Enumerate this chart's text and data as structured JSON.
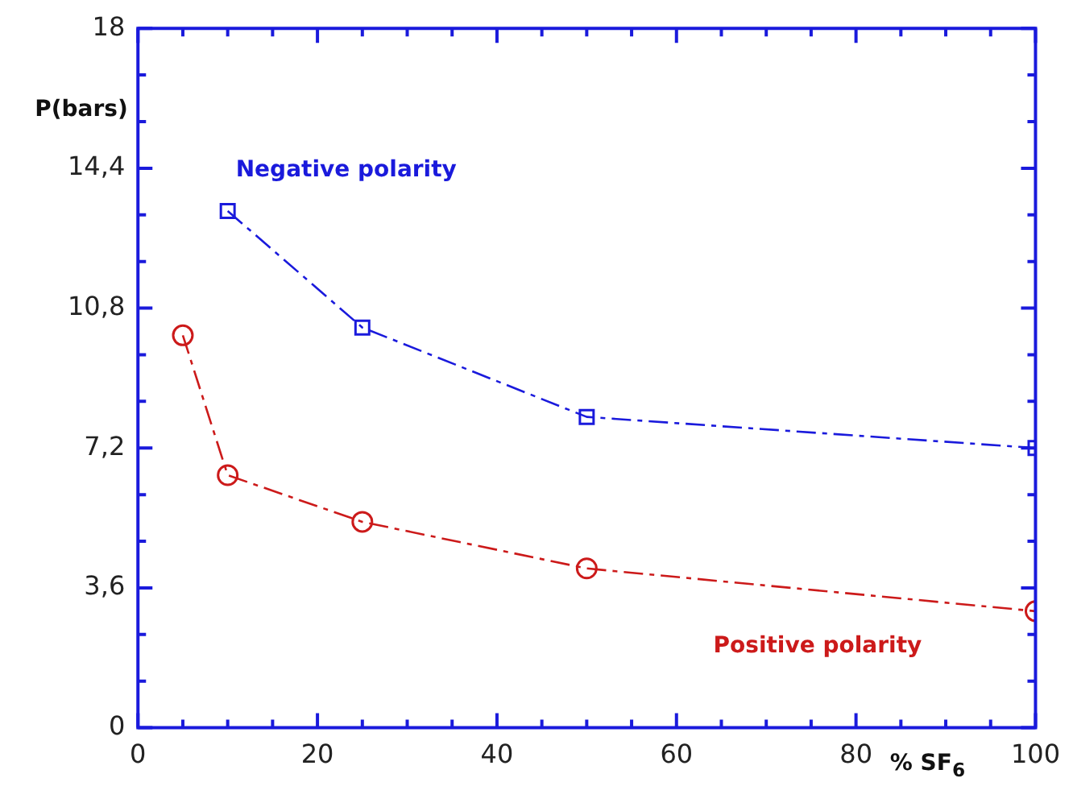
{
  "chart_data": {
    "type": "line",
    "xlabel": "% SF$_{6}$",
    "ylabel": "P(bars)",
    "xlim": [
      0,
      100
    ],
    "ylim": [
      0,
      18
    ],
    "xticks": [
      0,
      {
        "value": 5,
        "label": null
      },
      {
        "value": 10,
        "label": null
      },
      {
        "value": 15,
        "label": null
      },
      20,
      {
        "value": 25,
        "label": null
      },
      {
        "value": 30,
        "label": null
      },
      {
        "value": 35,
        "label": null
      },
      40,
      {
        "value": 45,
        "label": null
      },
      {
        "value": 50,
        "label": null
      },
      {
        "value": 55,
        "label": null
      },
      60,
      {
        "value": 65,
        "label": null
      },
      {
        "value": 70,
        "label": null
      },
      {
        "value": 75,
        "label": null
      },
      80,
      {
        "value": 85,
        "label": null
      },
      {
        "value": 90,
        "label": null
      },
      {
        "value": 95,
        "label": null
      },
      100
    ],
    "yticks": [
      0,
      {
        "value": 1.2,
        "label": null
      },
      {
        "value": 2.4,
        "label": null
      },
      {
        "value": 3.6,
        "label": "3,6"
      },
      {
        "value": 4.8,
        "label": null
      },
      {
        "value": 6,
        "label": null
      },
      {
        "value": 7.2,
        "label": "7,2"
      },
      {
        "value": 8.4,
        "label": null
      },
      {
        "value": 9.6,
        "label": null
      },
      {
        "value": 10.8,
        "label": "10,8"
      },
      {
        "value": 12,
        "label": null
      },
      {
        "value": 13.2,
        "label": null
      },
      {
        "value": 14.4,
        "label": "14,4"
      },
      {
        "value": 15.6,
        "label": null
      },
      {
        "value": 16.8,
        "label": null
      },
      18
    ],
    "grid": false,
    "legend": false,
    "line_style": "dashed",
    "series": [
      {
        "name": "Negative polarity",
        "color": "#1a1adc",
        "marker": "square",
        "x": [
          10,
          25,
          50,
          100
        ],
        "values": [
          13.3,
          10.3,
          8.0,
          7.2
        ]
      },
      {
        "name": "Positive polarity",
        "color": "#cc1a1a",
        "marker": "circle",
        "x": [
          5,
          10,
          25,
          50,
          100
        ],
        "values": [
          10.1,
          6.5,
          5.3,
          4.1,
          3.0
        ]
      }
    ]
  }
}
